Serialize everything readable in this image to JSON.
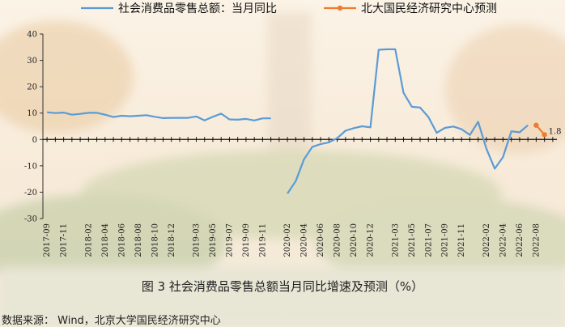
{
  "caption": "图 3 社会消费品零售总额当月同比增速及预测（%）",
  "source": "数据来源：  Wind，北京大学国民经济研究中心",
  "chart_data": {
    "type": "line",
    "ylim": [
      -30,
      40
    ],
    "yticks": [
      -30,
      -20,
      -10,
      0,
      10,
      20,
      30,
      40
    ],
    "x": [
      "2017-09",
      "2017-10",
      "2017-11",
      "2017-12",
      "2018-01",
      "2018-02",
      "2018-03",
      "2018-04",
      "2018-05",
      "2018-06",
      "2018-07",
      "2018-08",
      "2018-09",
      "2018-10",
      "2018-11",
      "2018-12",
      "2019-01",
      "2019-02",
      "2019-03",
      "2019-04",
      "2019-05",
      "2019-06",
      "2019-07",
      "2019-08",
      "2019-09",
      "2019-10",
      "2019-11",
      "2019-12",
      "2020-01",
      "2020-02",
      "2020-03",
      "2020-04",
      "2020-05",
      "2020-06",
      "2020-07",
      "2020-08",
      "2020-09",
      "2020-10",
      "2020-11",
      "2020-12",
      "2021-01",
      "2021-02",
      "2021-03",
      "2021-04",
      "2021-05",
      "2021-06",
      "2021-07",
      "2021-08",
      "2021-09",
      "2021-10",
      "2021-11",
      "2021-12",
      "2022-01",
      "2022-02",
      "2022-03",
      "2022-04",
      "2022-05",
      "2022-06",
      "2022-07",
      "2022-08",
      "2022-09",
      "2022-10"
    ],
    "xtick_labels": [
      "2017-09",
      "2017-11",
      "2018-02",
      "2018-04",
      "2018-06",
      "2018-08",
      "2018-10",
      "2018-12",
      "2019-03",
      "2019-05",
      "2019-07",
      "2019-09",
      "2019-11",
      "2020-02",
      "2020-04",
      "2020-06",
      "2020-08",
      "2020-10",
      "2020-12",
      "2021-03",
      "2021-05",
      "2021-07",
      "2021-09",
      "2021-11",
      "2022-02",
      "2022-04",
      "2022-06",
      "2022-08"
    ],
    "series": [
      {
        "name": "社会消费品零售总额：当月同比",
        "color": "#5b9bd5",
        "values": [
          10.3,
          10.0,
          10.2,
          9.4,
          9.7,
          10.1,
          10.1,
          9.4,
          8.5,
          9.0,
          8.8,
          9.0,
          9.2,
          8.6,
          8.1,
          8.2,
          8.2,
          8.2,
          8.7,
          7.2,
          8.6,
          9.8,
          7.6,
          7.5,
          7.8,
          7.2,
          8.0,
          8.0,
          null,
          -20.5,
          -15.8,
          -7.5,
          -2.8,
          -1.8,
          -1.1,
          0.5,
          3.3,
          4.3,
          5.0,
          4.6,
          34.0,
          34.2,
          34.2,
          17.7,
          12.4,
          12.1,
          8.5,
          2.5,
          4.4,
          4.9,
          3.9,
          1.7,
          6.7,
          -3.5,
          -11.1,
          -6.7,
          3.1,
          2.7,
          5.4,
          null,
          null,
          null
        ]
      },
      {
        "name": "北大国民经济研究中心预测",
        "color": "#ed7d31",
        "values": [
          null,
          null,
          null,
          null,
          null,
          null,
          null,
          null,
          null,
          null,
          null,
          null,
          null,
          null,
          null,
          null,
          null,
          null,
          null,
          null,
          null,
          null,
          null,
          null,
          null,
          null,
          null,
          null,
          null,
          null,
          null,
          null,
          null,
          null,
          null,
          null,
          null,
          null,
          null,
          null,
          null,
          null,
          null,
          null,
          null,
          null,
          null,
          null,
          null,
          null,
          null,
          null,
          null,
          null,
          null,
          null,
          null,
          null,
          null,
          5.4,
          1.8,
          null
        ]
      }
    ],
    "annotation": "1.8"
  }
}
